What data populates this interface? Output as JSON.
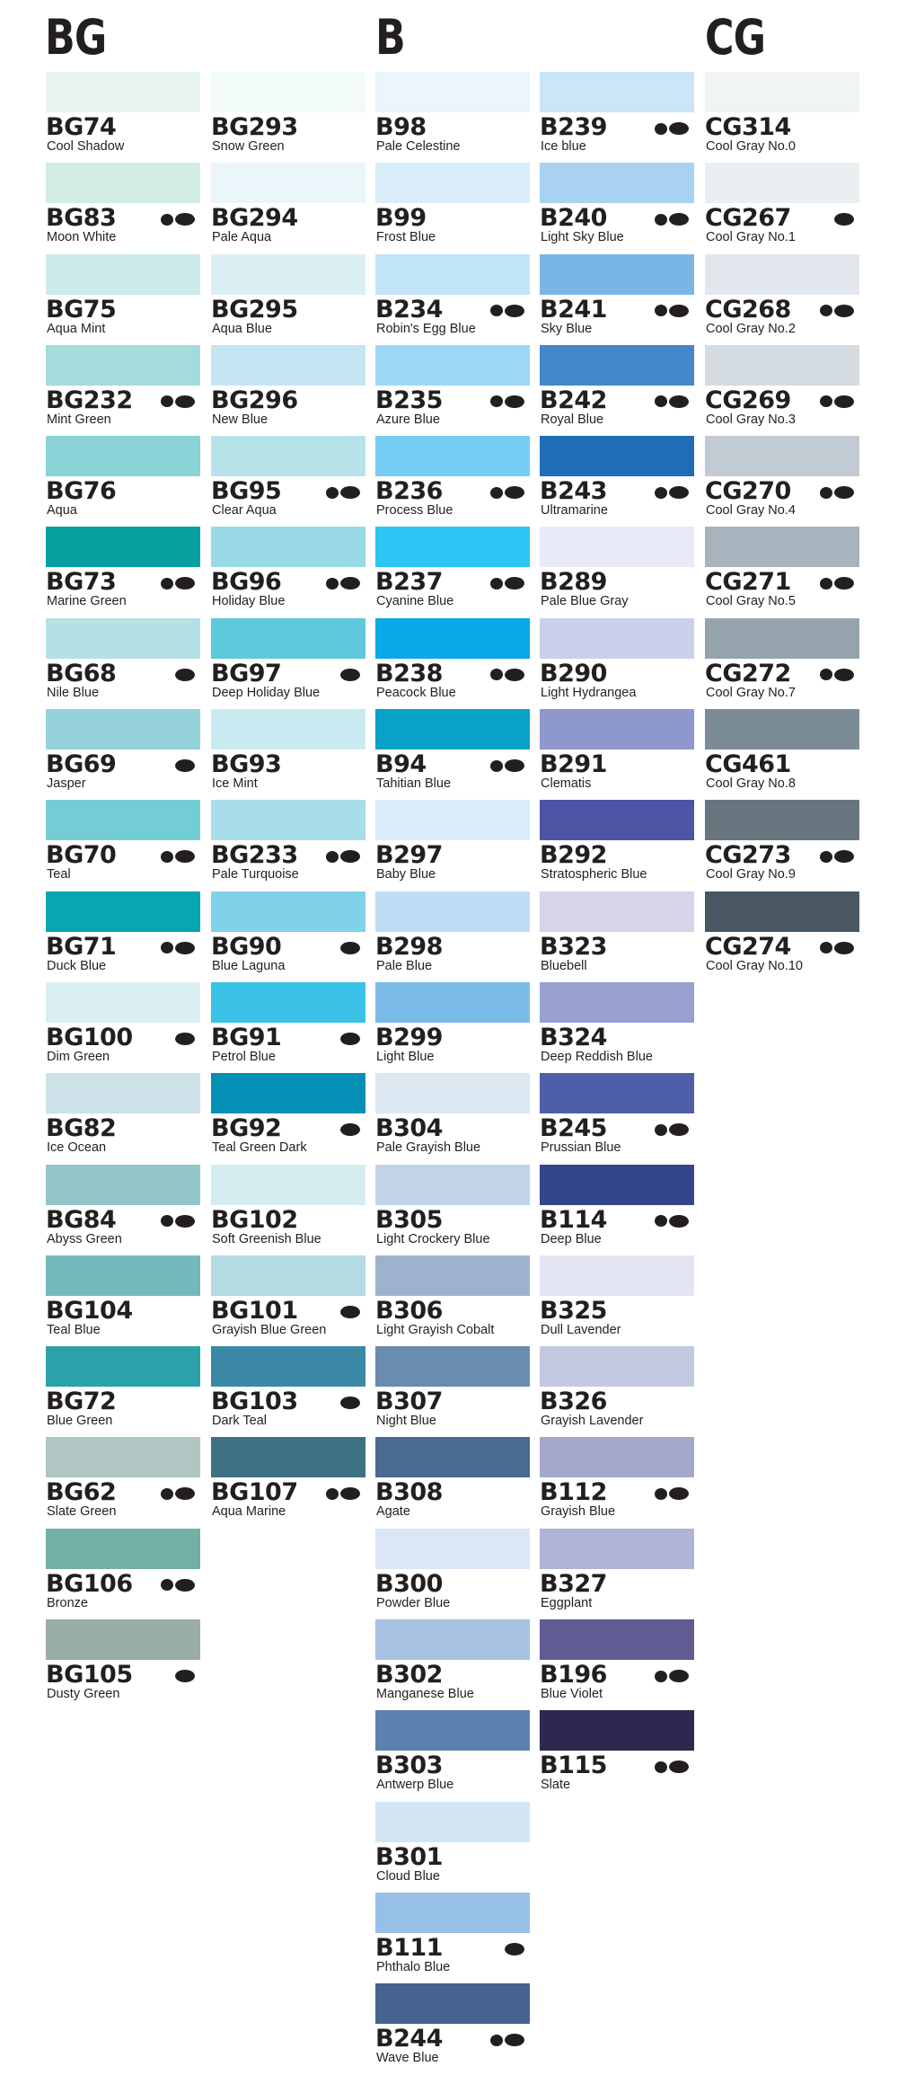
{
  "headers": [
    "BG",
    "B",
    "CG"
  ],
  "columns": [
    [
      {
        "code": "BG74",
        "name": "Cool Shadow",
        "color": "#e6f3f0",
        "tips": 0
      },
      {
        "code": "BG83",
        "name": "Moon White",
        "color": "#d3ece6",
        "tips": 2
      },
      {
        "code": "BG75",
        "name": "Aqua Mint",
        "color": "#cdeaea",
        "tips": 0
      },
      {
        "code": "BG232",
        "name": "Mint Green",
        "color": "#a4dcdc",
        "tips": 2
      },
      {
        "code": "BG76",
        "name": "Aqua",
        "color": "#8ad3d6",
        "tips": 0
      },
      {
        "code": "BG73",
        "name": "Marine Green",
        "color": "#06a0a1",
        "tips": 2
      },
      {
        "code": "BG68",
        "name": "Nile Blue",
        "color": "#b5e1e5",
        "tips": 1
      },
      {
        "code": "BG69",
        "name": "Jasper",
        "color": "#95d2d9",
        "tips": 1
      },
      {
        "code": "BG70",
        "name": "Teal",
        "color": "#74cdd4",
        "tips": 2
      },
      {
        "code": "BG71",
        "name": "Duck Blue",
        "color": "#07a6b0",
        "tips": 2
      },
      {
        "code": "BG100",
        "name": "Dim Green",
        "color": "#daf0f0",
        "tips": 1
      },
      {
        "code": "BG82",
        "name": "Ice Ocean",
        "color": "#cce1e8",
        "tips": 0
      },
      {
        "code": "BG84",
        "name": "Abyss Green",
        "color": "#93c6c8",
        "tips": 2
      },
      {
        "code": "BG104",
        "name": "Teal Blue",
        "color": "#74b8bc",
        "tips": 0
      },
      {
        "code": "BG72",
        "name": "Blue Green",
        "color": "#2da1aa",
        "tips": 0
      },
      {
        "code": "BG62",
        "name": "Slate Green",
        "color": "#afc6c2",
        "tips": 2
      },
      {
        "code": "BG106",
        "name": "Bronze",
        "color": "#72afa4",
        "tips": 2
      },
      {
        "code": "BG105",
        "name": "Dusty Green",
        "color": "#9aaca7",
        "tips": 1
      }
    ],
    [
      {
        "code": "BG293",
        "name": "Snow Green",
        "color": "#f2fafa",
        "tips": 0
      },
      {
        "code": "BG294",
        "name": "Pale Aqua",
        "color": "#eaf6fa",
        "tips": 0
      },
      {
        "code": "BG295",
        "name": "Aqua Blue",
        "color": "#d9eff4",
        "tips": 0
      },
      {
        "code": "BG296",
        "name": "New Blue",
        "color": "#c3e6f2",
        "tips": 0
      },
      {
        "code": "BG95",
        "name": "Clear Aqua",
        "color": "#b6e3ea",
        "tips": 2
      },
      {
        "code": "BG96",
        "name": "Holiday Blue",
        "color": "#99dae6",
        "tips": 2
      },
      {
        "code": "BG97",
        "name": "Deep Holiday Blue",
        "color": "#5ec9dc",
        "tips": 1
      },
      {
        "code": "BG93",
        "name": "Ice Mint",
        "color": "#c9eaf1",
        "tips": 0
      },
      {
        "code": "BG233",
        "name": "Pale Turquoise",
        "color": "#a9dde9",
        "tips": 2
      },
      {
        "code": "BG90",
        "name": "Blue Laguna",
        "color": "#7fd2ea",
        "tips": 1
      },
      {
        "code": "BG91",
        "name": "Petrol Blue",
        "color": "#3ac1e6",
        "tips": 1
      },
      {
        "code": "BG92",
        "name": "Teal Green Dark",
        "color": "#048fb5",
        "tips": 1
      },
      {
        "code": "BG102",
        "name": "Soft Greenish Blue",
        "color": "#d4ecf0",
        "tips": 0
      },
      {
        "code": "BG101",
        "name": "Grayish Blue Green",
        "color": "#b2dbe3",
        "tips": 1
      },
      {
        "code": "BG103",
        "name": "Dark Teal",
        "color": "#3b89a7",
        "tips": 1
      },
      {
        "code": "BG107",
        "name": "Aqua Marine",
        "color": "#3d7083",
        "tips": 2
      }
    ],
    [
      {
        "code": "B98",
        "name": "Pale Celestine",
        "color": "#eaf5fc",
        "tips": 0
      },
      {
        "code": "B99",
        "name": "Frost Blue",
        "color": "#d9eef9",
        "tips": 0
      },
      {
        "code": "B234",
        "name": "Robin's Egg Blue",
        "color": "#c2e4f8",
        "tips": 2
      },
      {
        "code": "B235",
        "name": "Azure Blue",
        "color": "#9cd8f4",
        "tips": 2
      },
      {
        "code": "B236",
        "name": "Process Blue",
        "color": "#76cdf4",
        "tips": 2
      },
      {
        "code": "B237",
        "name": "Cyanine Blue",
        "color": "#2ec4f3",
        "tips": 2
      },
      {
        "code": "B238",
        "name": "Peacock Blue",
        "color": "#08a9e6",
        "tips": 2
      },
      {
        "code": "B94",
        "name": "Tahitian Blue",
        "color": "#0aa1c9",
        "tips": 2
      },
      {
        "code": "B297",
        "name": "Baby Blue",
        "color": "#d9ecf8",
        "tips": 0
      },
      {
        "code": "B298",
        "name": "Pale Blue",
        "color": "#bedcf3",
        "tips": 0
      },
      {
        "code": "B299",
        "name": "Light Blue",
        "color": "#7bbbe8",
        "tips": 0
      },
      {
        "code": "B304",
        "name": "Pale Grayish Blue",
        "color": "#dce8f2",
        "tips": 0
      },
      {
        "code": "B305",
        "name": "Light Crockery Blue",
        "color": "#c0d3e7",
        "tips": 0
      },
      {
        "code": "B306",
        "name": "Light Grayish Cobalt",
        "color": "#9db3cd",
        "tips": 0
      },
      {
        "code": "B307",
        "name": "Night Blue",
        "color": "#6a8caf",
        "tips": 0
      },
      {
        "code": "B308",
        "name": "Agate",
        "color": "#4a6a8f",
        "tips": 0
      },
      {
        "code": "B300",
        "name": "Powder Blue",
        "color": "#dbe7f4",
        "tips": 0
      },
      {
        "code": "B302",
        "name": "Manganese Blue",
        "color": "#a6c1e2",
        "tips": 0
      },
      {
        "code": "B303",
        "name": "Antwerp Blue",
        "color": "#5e82b0",
        "tips": 0
      },
      {
        "code": "B301",
        "name": "Cloud Blue",
        "color": "#d1e5f5",
        "tips": 0
      },
      {
        "code": "B111",
        "name": "Phthalo Blue",
        "color": "#97c0e7",
        "tips": 1
      },
      {
        "code": "B244",
        "name": "Wave Blue",
        "color": "#46638f",
        "tips": 2
      }
    ],
    [
      {
        "code": "B239",
        "name": "Ice blue",
        "color": "#cbe6f7",
        "tips": 2
      },
      {
        "code": "B240",
        "name": "Light Sky Blue",
        "color": "#a9d3f1",
        "tips": 2
      },
      {
        "code": "B241",
        "name": "Sky Blue",
        "color": "#7ab6e5",
        "tips": 2
      },
      {
        "code": "B242",
        "name": "Royal Blue",
        "color": "#4387cc",
        "tips": 2
      },
      {
        "code": "B243",
        "name": "Ultramarine",
        "color": "#1f6db9",
        "tips": 2
      },
      {
        "code": "B289",
        "name": "Pale Blue Gray",
        "color": "#e9eaf7",
        "tips": 0
      },
      {
        "code": "B290",
        "name": "Light Hydrangea",
        "color": "#cbd0ea",
        "tips": 0
      },
      {
        "code": "B291",
        "name": "Clematis",
        "color": "#8e98cd",
        "tips": 0
      },
      {
        "code": "B292",
        "name": "Stratospheric Blue",
        "color": "#4f55a5",
        "tips": 0
      },
      {
        "code": "B323",
        "name": "Bluebell",
        "color": "#d5d4ea",
        "tips": 0
      },
      {
        "code": "B324",
        "name": "Deep Reddish Blue",
        "color": "#97a0cf",
        "tips": 0
      },
      {
        "code": "B245",
        "name": "Prussian Blue",
        "color": "#4e5ea8",
        "tips": 2
      },
      {
        "code": "B114",
        "name": "Deep Blue",
        "color": "#34468b",
        "tips": 2
      },
      {
        "code": "B325",
        "name": "Dull Lavender",
        "color": "#e3e5f2",
        "tips": 0
      },
      {
        "code": "B326",
        "name": "Grayish Lavender",
        "color": "#c4c9e2",
        "tips": 0
      },
      {
        "code": "B112",
        "name": "Grayish Blue",
        "color": "#a5a9c9",
        "tips": 2
      },
      {
        "code": "B327",
        "name": "Eggplant",
        "color": "#b0b4d5",
        "tips": 0
      },
      {
        "code": "B196",
        "name": "Blue Violet",
        "color": "#5f5b93",
        "tips": 2
      },
      {
        "code": "B115",
        "name": "Slate",
        "color": "#2c2850",
        "tips": 2
      }
    ],
    [
      {
        "code": "CG314",
        "name": "Cool Gray No.0",
        "color": "#f1f4f4",
        "tips": 0
      },
      {
        "code": "CG267",
        "name": "Cool Gray No.1",
        "color": "#eaeff2",
        "tips": 1
      },
      {
        "code": "CG268",
        "name": "Cool Gray No.2",
        "color": "#e1e7ec",
        "tips": 2
      },
      {
        "code": "CG269",
        "name": "Cool Gray No.3",
        "color": "#d4dbe1",
        "tips": 2
      },
      {
        "code": "CG270",
        "name": "Cool Gray No.4",
        "color": "#c2cad3",
        "tips": 2
      },
      {
        "code": "CG271",
        "name": "Cool Gray No.5",
        "color": "#a8b4bd",
        "tips": 2
      },
      {
        "code": "CG272",
        "name": "Cool Gray No.7",
        "color": "#95a3ad",
        "tips": 2
      },
      {
        "code": "CG461",
        "name": "Cool Gray No.8",
        "color": "#7a8b96",
        "tips": 0
      },
      {
        "code": "CG273",
        "name": "Cool Gray No.9",
        "color": "#67757f",
        "tips": 2
      },
      {
        "code": "CG274",
        "name": "Cool Gray No.10",
        "color": "#4a5863",
        "tips": 2
      }
    ]
  ]
}
